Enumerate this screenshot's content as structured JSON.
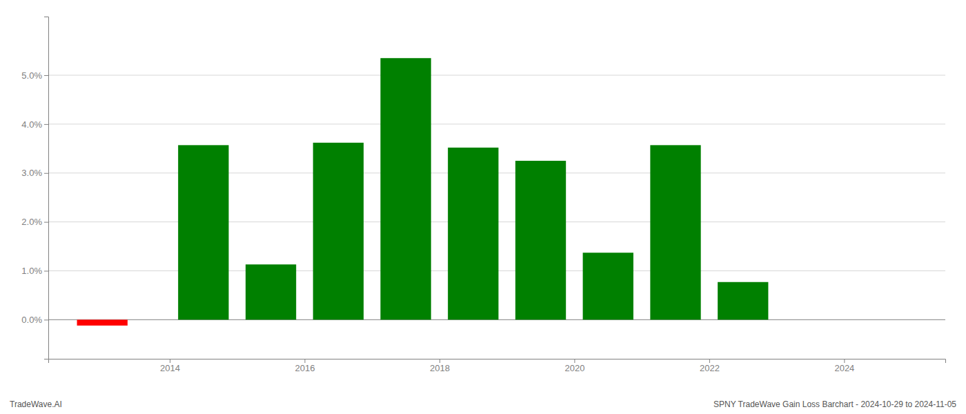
{
  "chart_data": {
    "type": "bar",
    "x": [
      2013.0,
      2014.5,
      2015.5,
      2016.5,
      2017.5,
      2018.5,
      2019.5,
      2020.5,
      2021.5,
      2022.5
    ],
    "values": [
      -0.0012,
      0.0357,
      0.0113,
      0.0362,
      0.0535,
      0.0352,
      0.0325,
      0.0137,
      0.0357,
      0.0077
    ],
    "colors": [
      "#ff0000",
      "#008000",
      "#008000",
      "#008000",
      "#008000",
      "#008000",
      "#008000",
      "#008000",
      "#008000",
      "#008000"
    ],
    "xlim": [
      2012.2,
      2025.5
    ],
    "xticks": [
      2014,
      2016,
      2018,
      2020,
      2022,
      2024
    ],
    "ylim": [
      -0.008,
      0.062
    ],
    "yticks": [
      {
        "value": 0.0,
        "label": "0.0%"
      },
      {
        "value": 0.01,
        "label": "1.0%"
      },
      {
        "value": 0.02,
        "label": "2.0%"
      },
      {
        "value": 0.03,
        "label": "3.0%"
      },
      {
        "value": 0.04,
        "label": "4.0%"
      },
      {
        "value": 0.05,
        "label": "5.0%"
      }
    ],
    "grid": true,
    "annotations": [
      "TradeWave.AI",
      "SPNY TradeWave Gain Loss Barchart - 2024-10-29 to 2024-11-05"
    ]
  }
}
